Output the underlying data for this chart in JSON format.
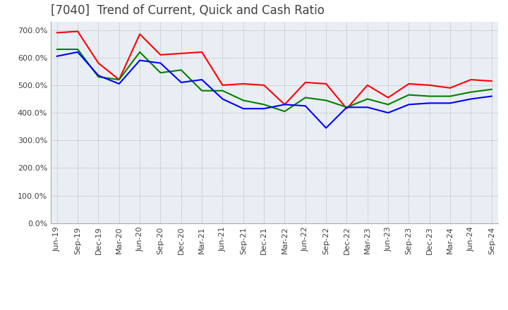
{
  "title": "[7040]  Trend of Current, Quick and Cash Ratio",
  "x_labels": [
    "Jun-19",
    "Sep-19",
    "Dec-19",
    "Mar-20",
    "Jun-20",
    "Sep-20",
    "Dec-20",
    "Mar-21",
    "Jun-21",
    "Sep-21",
    "Dec-21",
    "Mar-22",
    "Jun-22",
    "Sep-22",
    "Dec-22",
    "Mar-23",
    "Jun-23",
    "Sep-23",
    "Dec-23",
    "Mar-24",
    "Jun-24",
    "Sep-24"
  ],
  "current_ratio": [
    690,
    695,
    580,
    520,
    685,
    610,
    615,
    620,
    500,
    505,
    500,
    430,
    510,
    505,
    415,
    500,
    455,
    505,
    500,
    490,
    520,
    515
  ],
  "quick_ratio": [
    630,
    630,
    530,
    520,
    620,
    545,
    555,
    480,
    480,
    445,
    430,
    405,
    455,
    445,
    420,
    450,
    430,
    465,
    460,
    460,
    475,
    485
  ],
  "cash_ratio": [
    605,
    620,
    535,
    505,
    590,
    580,
    510,
    520,
    450,
    415,
    415,
    430,
    425,
    345,
    420,
    420,
    400,
    430,
    435,
    435,
    450,
    460
  ],
  "ylim": [
    0,
    730
  ],
  "yticks": [
    0,
    100,
    200,
    300,
    400,
    500,
    600,
    700
  ],
  "current_color": "#FF0000",
  "quick_color": "#008000",
  "cash_color": "#0000FF",
  "background_color": "#FFFFFF",
  "plot_bg_color": "#E8EEF4",
  "grid_color": "#AAAAAA",
  "title_color": "#404040",
  "line_width": 1.5,
  "title_fontsize": 12,
  "tick_fontsize": 8,
  "legend_fontsize": 9
}
